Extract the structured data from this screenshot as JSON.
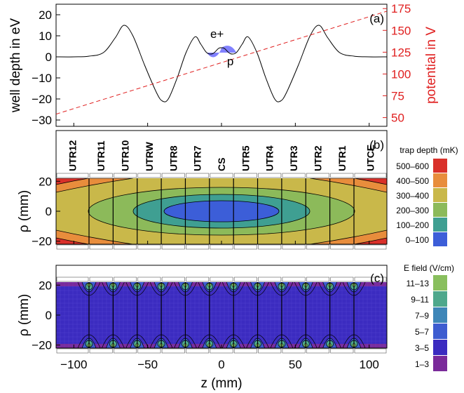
{
  "chart_data": [
    {
      "type": "line",
      "panel_label": "(a)",
      "ylabel_left": "well depth in eV",
      "ylabel_right": "potential in V",
      "y_ticks_left": [
        20,
        10,
        0,
        -10,
        -20,
        -30
      ],
      "y_ticks_right": [
        175,
        150,
        125,
        100,
        75,
        50
      ],
      "ylim_left": [
        -33,
        25
      ],
      "ylim_right": [
        40,
        180
      ],
      "xlim": [
        -112,
        112
      ],
      "annotations": [
        "e+",
        "p"
      ],
      "series": [
        {
          "color": "#000000",
          "x": [
            -112,
            -100,
            -90,
            -80,
            -72,
            -66,
            -60,
            -52,
            -44,
            -40,
            -36,
            -30,
            -24,
            -18,
            -14,
            -10,
            -6,
            -2,
            0,
            2,
            6,
            10,
            14,
            18,
            24,
            30,
            36,
            40,
            44,
            52,
            60,
            66,
            72,
            80,
            90,
            100,
            112
          ],
          "y": [
            0,
            0,
            0.3,
            2,
            9,
            15,
            10,
            -4,
            -17,
            -21,
            -20,
            -10,
            2,
            9.5,
            6,
            2,
            1.5,
            4,
            4.3,
            4,
            1.5,
            2,
            6,
            9.5,
            2,
            -10,
            -20,
            -21,
            -17,
            -4,
            10,
            15,
            9,
            2,
            0.3,
            0,
            0
          ]
        },
        {
          "color": "#e02020",
          "style": "dashed",
          "axis": "right",
          "x": [
            -112,
            112
          ],
          "y": [
            54,
            172
          ]
        }
      ]
    },
    {
      "type": "heatmap",
      "panel_label": "(b)",
      "ylabel": "ρ (mm)",
      "y_ticks": [
        20,
        0,
        -20
      ],
      "ylim": [
        -22,
        22
      ],
      "electrodes": [
        "UTR12",
        "UTR11",
        "UTR10",
        "UTRW",
        "UTR8",
        "UTR7",
        "CS",
        "UTR5",
        "UTR4",
        "UTR3",
        "UTR2",
        "UTR1",
        "UTCE"
      ],
      "legend_title": "trap depth (mK)",
      "legend": [
        {
          "label": "500–600",
          "color": "#d9302a"
        },
        {
          "label": "400–500",
          "color": "#e88d3c"
        },
        {
          "label": "300–400",
          "color": "#c9b84a"
        },
        {
          "label": "200–300",
          "color": "#8cba5a"
        },
        {
          "label": "100–200",
          "color": "#3f9f92"
        },
        {
          "label": "0–100",
          "color": "#3c5ed8"
        }
      ]
    },
    {
      "type": "heatmap",
      "panel_label": "(c)",
      "ylabel": "ρ (mm)",
      "y_ticks": [
        20,
        0,
        -20
      ],
      "ylim": [
        -22,
        22
      ],
      "xlabel": "z (mm)",
      "x_ticks": [
        -100,
        -50,
        0,
        50,
        100
      ],
      "xlim": [
        -112,
        112
      ],
      "legend_title": "E field (V/cm)",
      "legend": [
        {
          "label": "11–13",
          "color": "#89bf5e"
        },
        {
          "label": "9–11",
          "color": "#4ea88c"
        },
        {
          "label": "7–9",
          "color": "#3e86b8"
        },
        {
          "label": "5–7",
          "color": "#3d5cd0"
        },
        {
          "label": "3–5",
          "color": "#3b2bc0"
        },
        {
          "label": "1–3",
          "color": "#7a2a9a"
        }
      ]
    }
  ]
}
